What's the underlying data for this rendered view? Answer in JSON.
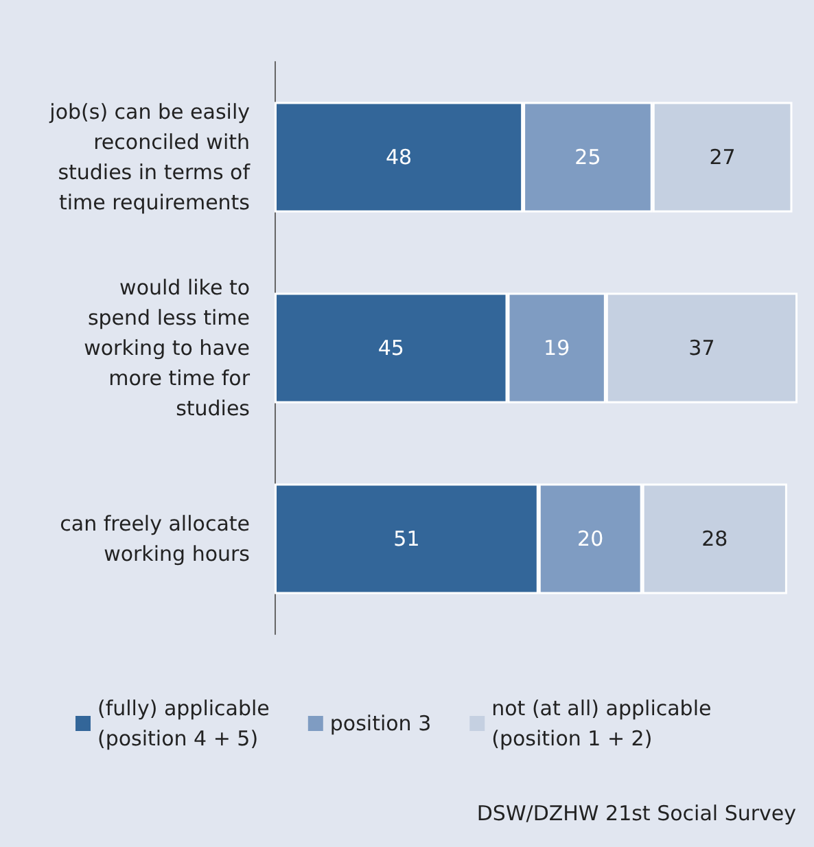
{
  "chart_data": {
    "type": "bar",
    "orientation": "horizontal",
    "stacked": true,
    "categories": [
      "job(s) can be easily\nreconciled with\nstudies in terms of\ntime requirements",
      "would like to\nspend less time\nworking to have\nmore time for\nstudies",
      "can freely allocate\nworking hours"
    ],
    "series": [
      {
        "name": "(fully) applicable\n(position 4 + 5)",
        "color": "#336699",
        "values": [
          48,
          45,
          51
        ]
      },
      {
        "name": "position 3",
        "color": "#7f9cc2",
        "values": [
          25,
          19,
          20
        ]
      },
      {
        "name": "not (at all) applicable\n(position 1 + 2)",
        "color": "#c5d0e1",
        "values": [
          27,
          37,
          28
        ]
      }
    ],
    "xlim": [
      0,
      101
    ],
    "data_labels": true,
    "tick_labels": "y",
    "legend": "bottom",
    "annotations": [
      "DSW/DZHW 21st Social Survey"
    ]
  }
}
